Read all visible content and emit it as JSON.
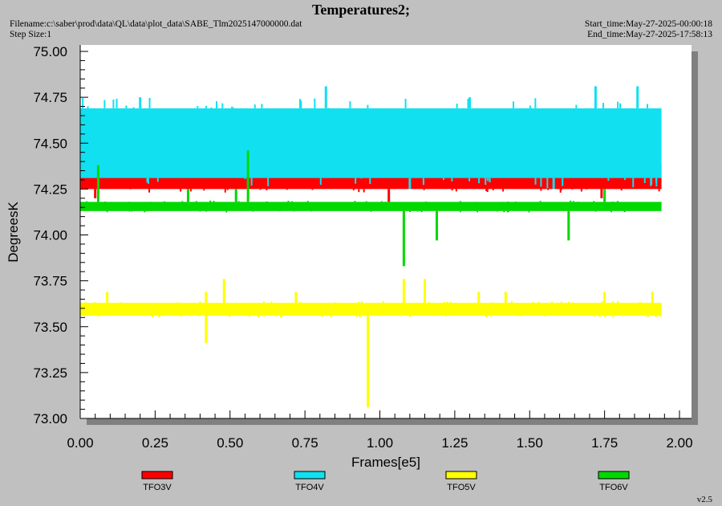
{
  "header": {
    "title": "Temperatures2;",
    "filename": "Filename:c:\\saber\\prod\\data\\QL\\data\\plot_data\\SABE_Tlm2025147000000.dat",
    "step_size": "Step Size:1",
    "start_time": "Start_time:May-27-2025-00:00:18",
    "end_time": "End_time:May-27-2025-17:58:13"
  },
  "footer": {
    "version": "v2.5"
  },
  "colors": {
    "background": "#c0c0c0",
    "plot_area": "#ffffff",
    "shadow": "#808080",
    "TFO3V": "#ff0000",
    "TFO4V": "#10e0f0",
    "TFO5V": "#ffff00",
    "TFO6V": "#00d800"
  },
  "chart_data": {
    "type": "line",
    "title": "Temperatures2;",
    "xlabel": "Frames[e5]",
    "ylabel": "DegreesK",
    "xlim": [
      0.0,
      2.0
    ],
    "ylim": [
      73.0,
      75.0
    ],
    "x_ticks": [
      "0.00",
      "0.25",
      "0.50",
      "0.75",
      "1.00",
      "1.25",
      "1.50",
      "1.75",
      "2.00"
    ],
    "y_ticks": [
      "73.00",
      "73.25",
      "73.50",
      "73.75",
      "74.00",
      "74.25",
      "74.50",
      "74.75",
      "75.00"
    ],
    "grid": false,
    "legend_position": "bottom",
    "series": [
      {
        "name": "TFO3V",
        "color": "#ff0000",
        "x_range": [
          0.0,
          1.94
        ],
        "band": [
          74.25,
          74.38
        ],
        "spikes": [
          [
            0.05,
            74.2
          ],
          [
            1.03,
            74.18
          ],
          [
            1.74,
            74.2
          ]
        ]
      },
      {
        "name": "TFO4V",
        "color": "#10e0f0",
        "x_range": [
          0.0,
          1.94
        ],
        "band": [
          74.31,
          74.69
        ],
        "spikes": [
          [
            0.82,
            74.81
          ],
          [
            1.72,
            74.81
          ],
          [
            1.86,
            74.81
          ],
          [
            0.2,
            74.75
          ],
          [
            1.3,
            74.75
          ],
          [
            1.1,
            74.25
          ],
          [
            1.58,
            74.25
          ]
        ]
      },
      {
        "name": "TFO5V",
        "color": "#ffff00",
        "x_range": [
          0.0,
          1.94
        ],
        "band": [
          73.56,
          73.63
        ],
        "spikes": [
          [
            0.96,
            73.06
          ],
          [
            0.42,
            73.41
          ],
          [
            0.48,
            73.76
          ],
          [
            1.08,
            73.76
          ],
          [
            1.15,
            73.76
          ],
          [
            0.09,
            73.69
          ],
          [
            0.42,
            73.69
          ],
          [
            0.72,
            73.69
          ],
          [
            1.33,
            73.69
          ],
          [
            1.42,
            73.69
          ],
          [
            1.75,
            73.69
          ],
          [
            1.91,
            73.69
          ]
        ]
      },
      {
        "name": "TFO6V",
        "color": "#00d800",
        "x_range": [
          0.0,
          1.94
        ],
        "band": [
          74.13,
          74.18
        ],
        "spikes": [
          [
            0.56,
            74.46
          ],
          [
            1.08,
            73.83
          ],
          [
            1.19,
            73.97
          ],
          [
            1.63,
            73.97
          ],
          [
            0.06,
            74.38
          ],
          [
            0.36,
            74.25
          ],
          [
            0.52,
            74.25
          ],
          [
            1.75,
            74.25
          ]
        ]
      }
    ]
  }
}
